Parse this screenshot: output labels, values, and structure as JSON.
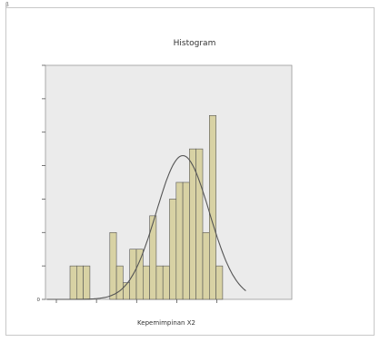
{
  "chart_data": {
    "type": "bar",
    "subtype": "histogram",
    "title": "Histogram",
    "xlabel": "Kepemimpinan X2",
    "ylabel": "",
    "x_ticks": [
      "",
      "",
      "",
      "",
      ""
    ],
    "y_ticks": [
      "0",
      "",
      "",
      "",
      "",
      "",
      "",
      ""
    ],
    "ylim": [
      0,
      7
    ],
    "bins": [
      {
        "index": 0,
        "count": 1
      },
      {
        "index": 1,
        "count": 1
      },
      {
        "index": 2,
        "count": 1
      },
      {
        "index": 3,
        "count": 0
      },
      {
        "index": 4,
        "count": 0
      },
      {
        "index": 5,
        "count": 0
      },
      {
        "index": 6,
        "count": 2
      },
      {
        "index": 7,
        "count": 1
      },
      {
        "index": 8,
        "count": 0.5
      },
      {
        "index": 9,
        "count": 1.5
      },
      {
        "index": 10,
        "count": 1.5
      },
      {
        "index": 11,
        "count": 1
      },
      {
        "index": 12,
        "count": 2.5
      },
      {
        "index": 13,
        "count": 1
      },
      {
        "index": 14,
        "count": 1
      },
      {
        "index": 15,
        "count": 3
      },
      {
        "index": 16,
        "count": 3.5
      },
      {
        "index": 17,
        "count": 3.5
      },
      {
        "index": 18,
        "count": 4.5
      },
      {
        "index": 19,
        "count": 4.5
      },
      {
        "index": 20,
        "count": 2
      },
      {
        "index": 21,
        "count": 5.5
      },
      {
        "index": 22,
        "count": 1
      }
    ],
    "normal_curve": true,
    "grid": false,
    "legend": "none",
    "bar_color": "#d8d2a4",
    "bar_edge_color": "#555555",
    "plot_background": "#ebebeb",
    "curve_color": "#555555",
    "stats_text": [
      "",
      "",
      ""
    ]
  }
}
